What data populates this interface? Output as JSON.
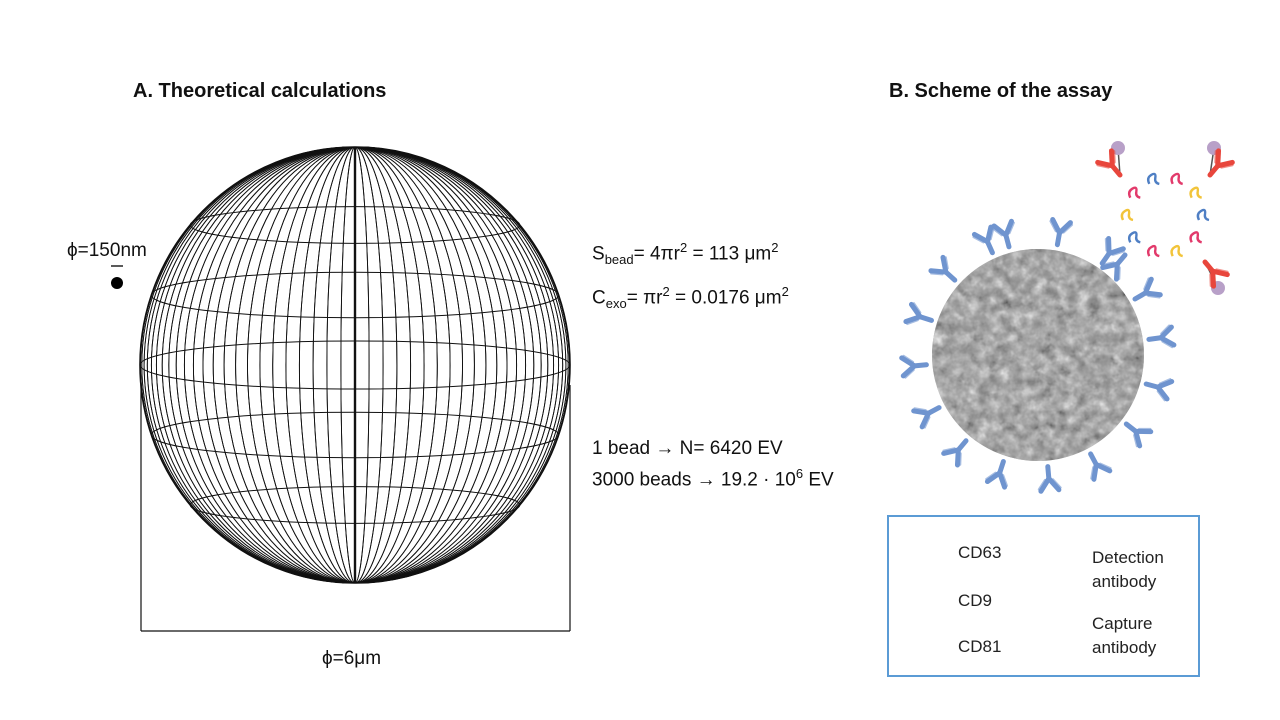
{
  "panel_a": {
    "title": "A. Theoretical calculations",
    "small_diameter_label": "ϕ=150nm",
    "bead_diameter_label": "ϕ=6μm",
    "surface": {
      "sym": "S",
      "sub": "bead",
      "expr": "= 4πr",
      "sup": "2",
      "result": " = 113 μm",
      "unit_sup": "2"
    },
    "coverage": {
      "sym": "C",
      "sub": "exo",
      "expr": "= πr",
      "sup": "2",
      "result": " = 0.0176 μm",
      "unit_sup": "2"
    },
    "line_one_bead": "1 bead → N= 6420 EV",
    "line_beads_prefix": "3000 beads → 19.2 · 10",
    "line_beads_sup": "6",
    "line_beads_suffix": " EV"
  },
  "panel_b": {
    "title": "B. Scheme of the assay",
    "legend": {
      "cd63": "CD63",
      "cd9": "CD9",
      "cd81": "CD81",
      "detection_line1": "Detection",
      "detection_line2": "antibody",
      "capture_line1": "Capture",
      "capture_line2": "antibody"
    }
  },
  "colors": {
    "capture_antibody": "#6f94cf",
    "detection_antibody": "#e8463c",
    "label_dot": "#b8a0c8",
    "cd63": "#4f7fc4",
    "cd9": "#e23a6b",
    "cd81": "#f2c43a",
    "legend_border": "#5b9bd5",
    "bead_fill": "#8a8a8a"
  }
}
